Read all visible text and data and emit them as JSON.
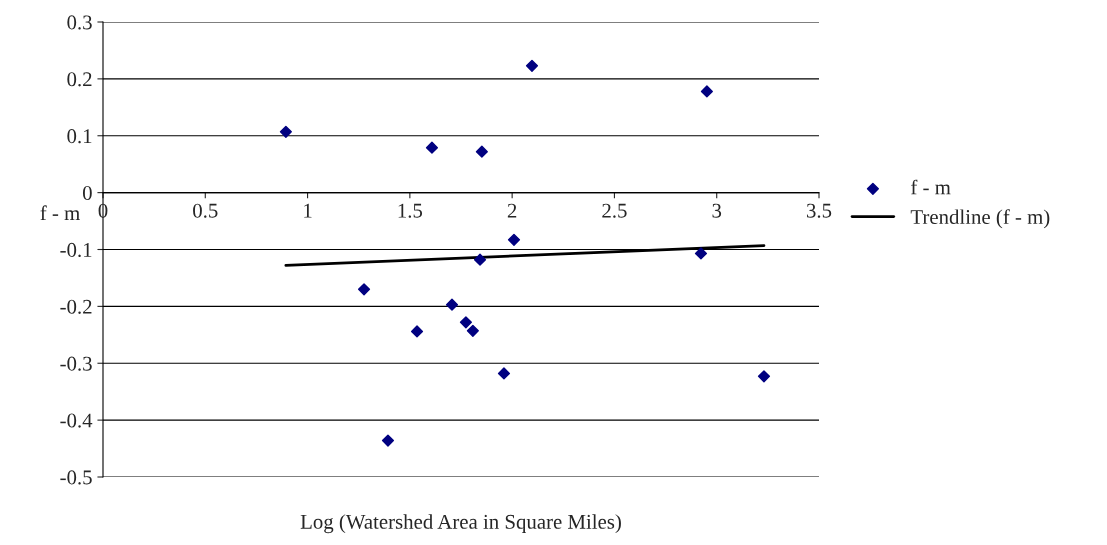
{
  "chart_data": {
    "type": "scatter",
    "xlabel": "Log (Watershed Area in Square Miles)",
    "ylabel": "f - m",
    "xlim": [
      0,
      3.5
    ],
    "xticks": [
      0,
      0.5,
      1,
      1.5,
      2,
      2.5,
      3,
      3.5
    ],
    "ylim": [
      -0.5,
      0.3
    ],
    "yticks": [
      -0.5,
      -0.4,
      -0.3,
      -0.2,
      -0.1,
      0,
      0.1,
      0.2,
      0.3
    ],
    "grid": "y",
    "legend": "right",
    "series": [
      {
        "name": "f - m",
        "marker": "diamond",
        "color": "#000080",
        "x": [
          0.894,
          2.097,
          2.952,
          1.608,
          1.852,
          2.009,
          1.843,
          2.923,
          1.276,
          1.706,
          1.535,
          1.774,
          1.808,
          1.96,
          1.393,
          3.231
        ],
        "values": [
          0.107,
          0.223,
          0.178,
          0.079,
          0.072,
          -0.083,
          -0.118,
          -0.107,
          -0.17,
          -0.197,
          -0.244,
          -0.228,
          -0.243,
          -0.318,
          -0.436,
          -0.323
        ]
      },
      {
        "name": "Trendline (f - m)",
        "type": "line",
        "line_style": "solid",
        "color": "#000000",
        "x": [
          0.894,
          3.231
        ],
        "values": [
          -0.128,
          -0.093
        ]
      }
    ]
  }
}
